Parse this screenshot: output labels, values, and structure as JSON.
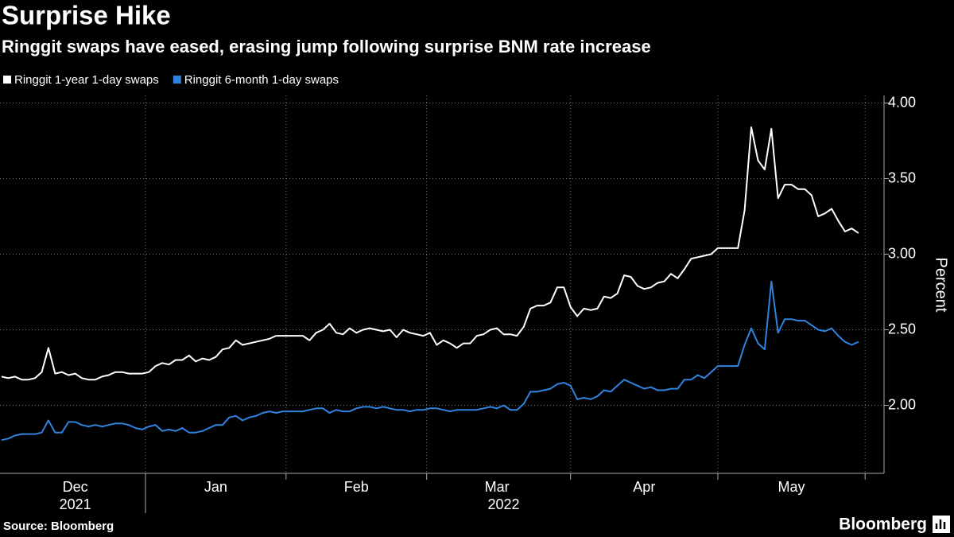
{
  "chart_data": {
    "type": "line",
    "title": "Surprise Hike",
    "subtitle": "Ringgit swaps have eased, erasing jump following surprise BNM rate increase",
    "y_axis_label": "Percent",
    "source": "Source: Bloomberg",
    "brand": "Bloomberg",
    "years": [
      "2021",
      "2022"
    ],
    "categories": [
      null,
      null,
      null,
      null,
      null,
      null,
      null,
      null,
      null,
      null,
      null,
      "Dec",
      null,
      null,
      null,
      null,
      null,
      null,
      null,
      null,
      null,
      null,
      null,
      null,
      null,
      null,
      null,
      null,
      null,
      null,
      null,
      null,
      "Jan",
      null,
      null,
      null,
      null,
      null,
      null,
      null,
      null,
      null,
      null,
      null,
      null,
      null,
      null,
      null,
      null,
      null,
      null,
      null,
      null,
      "Feb",
      null,
      null,
      null,
      null,
      null,
      null,
      null,
      null,
      null,
      null,
      null,
      null,
      null,
      null,
      null,
      null,
      null,
      null,
      null,
      null,
      "Mar",
      null,
      null,
      null,
      null,
      null,
      null,
      null,
      null,
      null,
      null,
      null,
      null,
      null,
      null,
      null,
      null,
      null,
      null,
      null,
      null,
      null,
      "Apr",
      null,
      null,
      null,
      null,
      null,
      null,
      null,
      null,
      null,
      null,
      null,
      null,
      null,
      null,
      null,
      null,
      null,
      null,
      null,
      null,
      null,
      "May",
      null,
      null,
      null,
      null,
      null,
      null,
      null,
      null,
      null,
      null
    ],
    "series": [
      {
        "name": "Ringgit 1-year 1-day swaps",
        "color": "#ffffff",
        "values": [
          2.19,
          2.18,
          2.19,
          2.17,
          2.17,
          2.18,
          2.22,
          2.38,
          2.21,
          2.22,
          2.2,
          2.21,
          2.18,
          2.17,
          2.17,
          2.19,
          2.2,
          2.22,
          2.22,
          2.21,
          2.21,
          2.21,
          2.22,
          2.26,
          2.28,
          2.27,
          2.3,
          2.3,
          2.33,
          2.29,
          2.31,
          2.3,
          2.32,
          2.37,
          2.38,
          2.43,
          2.4,
          2.41,
          2.42,
          2.43,
          2.44,
          2.46,
          2.46,
          2.46,
          2.46,
          2.46,
          2.43,
          2.48,
          2.5,
          2.54,
          2.48,
          2.47,
          2.51,
          2.48,
          2.5,
          2.51,
          2.5,
          2.49,
          2.5,
          2.45,
          2.5,
          2.48,
          2.47,
          2.46,
          2.48,
          2.4,
          2.43,
          2.41,
          2.38,
          2.41,
          2.41,
          2.46,
          2.47,
          2.5,
          2.51,
          2.47,
          2.47,
          2.46,
          2.52,
          2.64,
          2.66,
          2.66,
          2.68,
          2.78,
          2.78,
          2.65,
          2.59,
          2.64,
          2.63,
          2.64,
          2.72,
          2.71,
          2.74,
          2.86,
          2.85,
          2.79,
          2.77,
          2.78,
          2.81,
          2.82,
          2.87,
          2.84,
          2.9,
          2.97,
          2.98,
          2.99,
          3.0,
          3.04,
          3.04,
          3.04,
          3.04,
          3.29,
          3.84,
          3.62,
          3.56,
          3.83,
          3.37,
          3.46,
          3.46,
          3.43,
          3.43,
          3.39,
          3.25,
          3.27,
          3.3,
          3.22,
          3.15,
          3.17,
          3.14
        ]
      },
      {
        "name": "Ringgit 6-month 1-day swaps",
        "color": "#2f84e0",
        "values": [
          1.77,
          1.78,
          1.8,
          1.81,
          1.81,
          1.81,
          1.82,
          1.9,
          1.82,
          1.82,
          1.89,
          1.89,
          1.87,
          1.86,
          1.87,
          1.86,
          1.87,
          1.88,
          1.88,
          1.87,
          1.85,
          1.84,
          1.86,
          1.87,
          1.83,
          1.84,
          1.83,
          1.85,
          1.82,
          1.82,
          1.83,
          1.85,
          1.87,
          1.87,
          1.92,
          1.93,
          1.9,
          1.92,
          1.93,
          1.95,
          1.96,
          1.95,
          1.96,
          1.96,
          1.96,
          1.96,
          1.97,
          1.98,
          1.98,
          1.95,
          1.97,
          1.96,
          1.96,
          1.98,
          1.99,
          1.99,
          1.98,
          1.99,
          1.98,
          1.97,
          1.97,
          1.96,
          1.97,
          1.97,
          1.98,
          1.98,
          1.97,
          1.96,
          1.97,
          1.97,
          1.97,
          1.97,
          1.98,
          1.99,
          1.98,
          2.0,
          1.97,
          1.97,
          2.01,
          2.09,
          2.09,
          2.1,
          2.11,
          2.14,
          2.15,
          2.13,
          2.04,
          2.05,
          2.04,
          2.06,
          2.1,
          2.09,
          2.13,
          2.17,
          2.15,
          2.13,
          2.11,
          2.12,
          2.1,
          2.1,
          2.11,
          2.11,
          2.17,
          2.17,
          2.2,
          2.18,
          2.22,
          2.26,
          2.26,
          2.26,
          2.26,
          2.4,
          2.51,
          2.41,
          2.37,
          2.82,
          2.48,
          2.57,
          2.57,
          2.56,
          2.56,
          2.53,
          2.5,
          2.49,
          2.51,
          2.46,
          2.42,
          2.4,
          2.42
        ]
      }
    ],
    "ylim": [
      1.55,
      4.05
    ],
    "yticks": [
      {
        "value": 2,
        "label": "2.00"
      },
      {
        "value": 2.5,
        "label": "2.50"
      },
      {
        "value": 3,
        "label": "3.00"
      },
      {
        "value": 3.5,
        "label": "3.50"
      },
      {
        "value": 4,
        "label": "4.00"
      }
    ],
    "grid": true
  }
}
